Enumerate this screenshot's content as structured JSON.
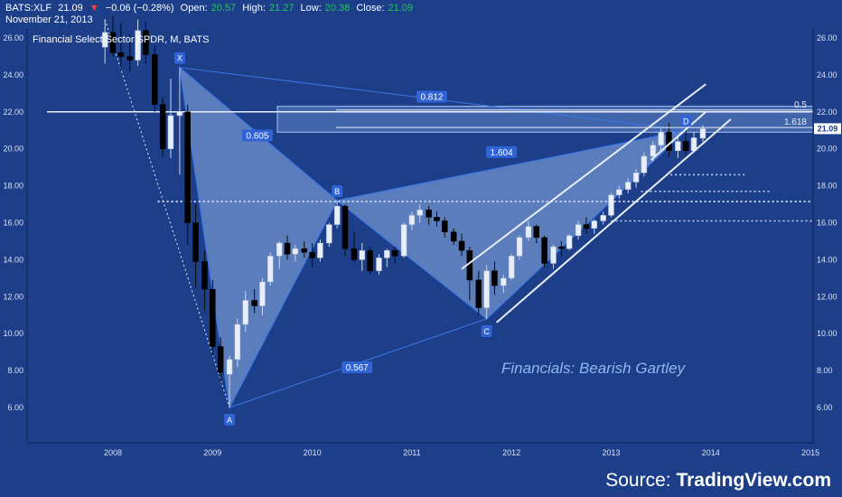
{
  "header": {
    "symbol": "BATS:XLF",
    "last": "21.09",
    "change": "−0.06 (−0.28%)",
    "open_label": "Open:",
    "open": "20.57",
    "high_label": "High:",
    "high": "21.27",
    "low_label": "Low:",
    "low": "20.38",
    "close_label": "Close:",
    "close": "21.09",
    "date": "November 21, 2013"
  },
  "colors": {
    "background": "#1d3e88",
    "bull_candle": "#e8eef8",
    "bear_candle": "#000000",
    "pattern_line": "#3c78e6",
    "pattern_fill": "#8fb0e8",
    "value_green": "#22c55e",
    "change_red": "#ef4444"
  },
  "source": {
    "prefix": "Source: ",
    "brand": "TradingView.com"
  },
  "chart_data": {
    "type": "candlestick",
    "title": "Financial Select Sector SPDR, M, BATS",
    "annotation": "Financials: Bearish Gartley",
    "ylim": [
      5.0,
      26.5
    ],
    "xlim": [
      2007.3,
      2015.0
    ],
    "y_ticks": [
      "26.00",
      "24.00",
      "22.00",
      "20.00",
      "18.00",
      "16.00",
      "14.00",
      "12.00",
      "10.00",
      "8.00",
      "6.00"
    ],
    "x_ticks": [
      {
        "label": "2008",
        "x": 2008
      },
      {
        "label": "2009",
        "x": 2009
      },
      {
        "label": "2010",
        "x": 2010
      },
      {
        "label": "2011",
        "x": 2011
      },
      {
        "label": "2012",
        "x": 2012
      },
      {
        "label": "2013",
        "x": 2013
      },
      {
        "label": "2014",
        "x": 2014
      },
      {
        "label": "2015",
        "x": 2015
      }
    ],
    "last_price_label": "21.09",
    "last_price": 21.09,
    "pattern_points": [
      {
        "name": "X",
        "t": 2008.67,
        "price": 24.4
      },
      {
        "name": "A",
        "t": 2009.17,
        "price": 6.0
      },
      {
        "name": "B",
        "t": 2010.25,
        "price": 17.2
      },
      {
        "name": "C",
        "t": 2011.75,
        "price": 10.8
      },
      {
        "name": "D",
        "t": 2013.75,
        "price": 21.0
      }
    ],
    "ratios": [
      {
        "label": "0.812",
        "t": 2011.2,
        "price": 22.8
      },
      {
        "label": "0.605",
        "t": 2009.45,
        "price": 20.7
      },
      {
        "label": "1.604",
        "t": 2011.9,
        "price": 19.8
      },
      {
        "label": "0.567",
        "t": 2010.45,
        "price": 8.15
      }
    ],
    "fib_levels": [
      {
        "label": "0.5",
        "price": 22.1
      },
      {
        "label": "1.618",
        "price": 21.15
      }
    ],
    "resistance_zone": [
      20.9,
      22.3
    ],
    "support_levels": [
      18.6,
      17.7,
      17.15,
      16.1
    ],
    "channel": {
      "upper": [
        [
          2011.5,
          13.5
        ],
        [
          2013.95,
          23.5
        ]
      ],
      "lower": [
        [
          2011.85,
          10.6
        ],
        [
          2014.2,
          21.6
        ]
      ],
      "mid": [
        [
          2013.4,
          19.4
        ],
        [
          2013.95,
          22.0
        ]
      ]
    },
    "candles": [
      {
        "t": 2007.92,
        "o": 25.5,
        "h": 27.0,
        "l": 24.6,
        "c": 26.3
      },
      {
        "t": 2008.0,
        "o": 26.3,
        "h": 27.2,
        "l": 25.0,
        "c": 25.2
      },
      {
        "t": 2008.08,
        "o": 25.2,
        "h": 26.8,
        "l": 24.3,
        "c": 25.0
      },
      {
        "t": 2008.17,
        "o": 25.0,
        "h": 26.2,
        "l": 24.2,
        "c": 24.8
      },
      {
        "t": 2008.25,
        "o": 24.8,
        "h": 27.0,
        "l": 24.5,
        "c": 26.4
      },
      {
        "t": 2008.33,
        "o": 26.4,
        "h": 26.9,
        "l": 24.6,
        "c": 25.1
      },
      {
        "t": 2008.42,
        "o": 25.1,
        "h": 25.6,
        "l": 22.0,
        "c": 22.4
      },
      {
        "t": 2008.5,
        "o": 22.4,
        "h": 22.8,
        "l": 19.6,
        "c": 20.0
      },
      {
        "t": 2008.58,
        "o": 20.0,
        "h": 23.8,
        "l": 19.5,
        "c": 21.8
      },
      {
        "t": 2008.67,
        "o": 21.8,
        "h": 24.4,
        "l": 18.6,
        "c": 22.0
      },
      {
        "t": 2008.75,
        "o": 22.0,
        "h": 22.4,
        "l": 14.8,
        "c": 16.0
      },
      {
        "t": 2008.83,
        "o": 16.0,
        "h": 17.0,
        "l": 12.5,
        "c": 13.9
      },
      {
        "t": 2008.92,
        "o": 13.9,
        "h": 14.5,
        "l": 11.2,
        "c": 12.4
      },
      {
        "t": 2009.0,
        "o": 12.4,
        "h": 12.9,
        "l": 8.8,
        "c": 9.3
      },
      {
        "t": 2009.08,
        "o": 9.3,
        "h": 9.8,
        "l": 7.4,
        "c": 7.9
      },
      {
        "t": 2009.17,
        "o": 7.8,
        "h": 8.8,
        "l": 6.0,
        "c": 8.6
      },
      {
        "t": 2009.25,
        "o": 8.6,
        "h": 10.8,
        "l": 8.2,
        "c": 10.5
      },
      {
        "t": 2009.33,
        "o": 10.5,
        "h": 12.3,
        "l": 10.1,
        "c": 11.8
      },
      {
        "t": 2009.42,
        "o": 11.8,
        "h": 12.4,
        "l": 11.1,
        "c": 11.5
      },
      {
        "t": 2009.5,
        "o": 11.5,
        "h": 13.0,
        "l": 11.0,
        "c": 12.8
      },
      {
        "t": 2009.58,
        "o": 12.8,
        "h": 14.4,
        "l": 12.6,
        "c": 14.2
      },
      {
        "t": 2009.67,
        "o": 14.2,
        "h": 15.0,
        "l": 13.5,
        "c": 14.9
      },
      {
        "t": 2009.75,
        "o": 14.9,
        "h": 15.3,
        "l": 14.0,
        "c": 14.3
      },
      {
        "t": 2009.83,
        "o": 14.3,
        "h": 14.8,
        "l": 13.9,
        "c": 14.6
      },
      {
        "t": 2009.92,
        "o": 14.6,
        "h": 15.0,
        "l": 14.1,
        "c": 14.4
      },
      {
        "t": 2010.0,
        "o": 14.4,
        "h": 14.9,
        "l": 13.6,
        "c": 14.1
      },
      {
        "t": 2010.08,
        "o": 14.1,
        "h": 15.1,
        "l": 13.9,
        "c": 14.9
      },
      {
        "t": 2010.17,
        "o": 14.9,
        "h": 16.0,
        "l": 14.7,
        "c": 15.9
      },
      {
        "t": 2010.25,
        "o": 15.9,
        "h": 17.2,
        "l": 15.7,
        "c": 16.9
      },
      {
        "t": 2010.33,
        "o": 16.9,
        "h": 17.0,
        "l": 14.2,
        "c": 14.6
      },
      {
        "t": 2010.42,
        "o": 14.6,
        "h": 15.5,
        "l": 13.9,
        "c": 14.0
      },
      {
        "t": 2010.5,
        "o": 14.0,
        "h": 14.9,
        "l": 13.4,
        "c": 14.5
      },
      {
        "t": 2010.58,
        "o": 14.5,
        "h": 14.7,
        "l": 13.2,
        "c": 13.4
      },
      {
        "t": 2010.67,
        "o": 13.4,
        "h": 14.3,
        "l": 13.2,
        "c": 14.1
      },
      {
        "t": 2010.75,
        "o": 14.1,
        "h": 14.6,
        "l": 13.6,
        "c": 14.5
      },
      {
        "t": 2010.83,
        "o": 14.5,
        "h": 14.7,
        "l": 13.8,
        "c": 14.2
      },
      {
        "t": 2010.92,
        "o": 14.2,
        "h": 16.0,
        "l": 14.1,
        "c": 15.9
      },
      {
        "t": 2011.0,
        "o": 15.9,
        "h": 16.6,
        "l": 15.6,
        "c": 16.4
      },
      {
        "t": 2011.08,
        "o": 16.4,
        "h": 17.0,
        "l": 16.0,
        "c": 16.7
      },
      {
        "t": 2011.17,
        "o": 16.7,
        "h": 16.9,
        "l": 15.9,
        "c": 16.3
      },
      {
        "t": 2011.25,
        "o": 16.3,
        "h": 16.6,
        "l": 15.8,
        "c": 16.1
      },
      {
        "t": 2011.33,
        "o": 16.1,
        "h": 16.3,
        "l": 15.2,
        "c": 15.5
      },
      {
        "t": 2011.42,
        "o": 15.5,
        "h": 15.7,
        "l": 14.8,
        "c": 15.0
      },
      {
        "t": 2011.5,
        "o": 15.0,
        "h": 15.4,
        "l": 14.2,
        "c": 14.5
      },
      {
        "t": 2011.58,
        "o": 14.5,
        "h": 14.7,
        "l": 11.8,
        "c": 12.9
      },
      {
        "t": 2011.67,
        "o": 12.9,
        "h": 13.4,
        "l": 11.0,
        "c": 11.4
      },
      {
        "t": 2011.75,
        "o": 11.4,
        "h": 13.7,
        "l": 10.8,
        "c": 13.4
      },
      {
        "t": 2011.83,
        "o": 13.4,
        "h": 13.9,
        "l": 12.1,
        "c": 12.6
      },
      {
        "t": 2011.92,
        "o": 12.6,
        "h": 13.2,
        "l": 12.2,
        "c": 13.0
      },
      {
        "t": 2012.0,
        "o": 13.0,
        "h": 14.3,
        "l": 12.9,
        "c": 14.2
      },
      {
        "t": 2012.08,
        "o": 14.2,
        "h": 15.3,
        "l": 14.0,
        "c": 15.2
      },
      {
        "t": 2012.17,
        "o": 15.2,
        "h": 16.1,
        "l": 15.0,
        "c": 15.8
      },
      {
        "t": 2012.25,
        "o": 15.8,
        "h": 15.9,
        "l": 14.9,
        "c": 15.2
      },
      {
        "t": 2012.33,
        "o": 15.2,
        "h": 15.3,
        "l": 13.6,
        "c": 13.8
      },
      {
        "t": 2012.42,
        "o": 13.8,
        "h": 14.8,
        "l": 13.5,
        "c": 14.7
      },
      {
        "t": 2012.5,
        "o": 14.7,
        "h": 15.0,
        "l": 14.2,
        "c": 14.6
      },
      {
        "t": 2012.58,
        "o": 14.6,
        "h": 15.4,
        "l": 14.5,
        "c": 15.3
      },
      {
        "t": 2012.67,
        "o": 15.3,
        "h": 16.1,
        "l": 15.1,
        "c": 15.9
      },
      {
        "t": 2012.75,
        "o": 15.9,
        "h": 16.3,
        "l": 15.4,
        "c": 15.7
      },
      {
        "t": 2012.83,
        "o": 15.7,
        "h": 16.2,
        "l": 15.4,
        "c": 16.1
      },
      {
        "t": 2012.92,
        "o": 16.1,
        "h": 16.6,
        "l": 15.9,
        "c": 16.4
      },
      {
        "t": 2013.0,
        "o": 16.4,
        "h": 17.6,
        "l": 16.3,
        "c": 17.5
      },
      {
        "t": 2013.08,
        "o": 17.5,
        "h": 18.0,
        "l": 17.3,
        "c": 17.8
      },
      {
        "t": 2013.17,
        "o": 17.8,
        "h": 18.4,
        "l": 17.6,
        "c": 18.2
      },
      {
        "t": 2013.25,
        "o": 18.2,
        "h": 18.9,
        "l": 17.9,
        "c": 18.7
      },
      {
        "t": 2013.33,
        "o": 18.7,
        "h": 19.8,
        "l": 18.5,
        "c": 19.6
      },
      {
        "t": 2013.42,
        "o": 19.6,
        "h": 20.4,
        "l": 19.3,
        "c": 20.2
      },
      {
        "t": 2013.5,
        "o": 20.2,
        "h": 21.1,
        "l": 19.9,
        "c": 20.9
      },
      {
        "t": 2013.58,
        "o": 20.9,
        "h": 21.4,
        "l": 19.6,
        "c": 19.9
      },
      {
        "t": 2013.67,
        "o": 19.9,
        "h": 20.7,
        "l": 19.5,
        "c": 20.4
      },
      {
        "t": 2013.75,
        "o": 20.4,
        "h": 21.0,
        "l": 19.7,
        "c": 19.9
      },
      {
        "t": 2013.83,
        "o": 19.9,
        "h": 20.9,
        "l": 19.8,
        "c": 20.6
      },
      {
        "t": 2013.92,
        "o": 20.57,
        "h": 21.27,
        "l": 20.38,
        "c": 21.09
      }
    ]
  }
}
